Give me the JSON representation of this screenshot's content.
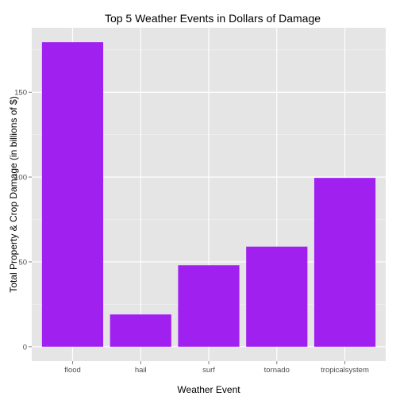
{
  "chart_data": {
    "type": "bar",
    "title": "Top 5 Weather Events in Dollars of Damage",
    "xlabel": "Weather Event",
    "ylabel": "Total Property & Crop Damage (in billions of $)",
    "categories": [
      "flood",
      "hail",
      "surf",
      "tornado",
      "tropicalsystem"
    ],
    "values": [
      179.5,
      19,
      48,
      59,
      99.5
    ],
    "ylim": [
      -8.5,
      188
    ],
    "yticks": [
      0,
      50,
      100,
      150
    ],
    "ytick_labels": [
      "0",
      "50",
      "100",
      "150"
    ],
    "grid": true,
    "legend": "none"
  },
  "colors": {
    "bar": "#A020F0",
    "panel": "#E5E5E5",
    "grid_major": "#FFFFFF",
    "grid_minor": "#F2F2F2"
  }
}
